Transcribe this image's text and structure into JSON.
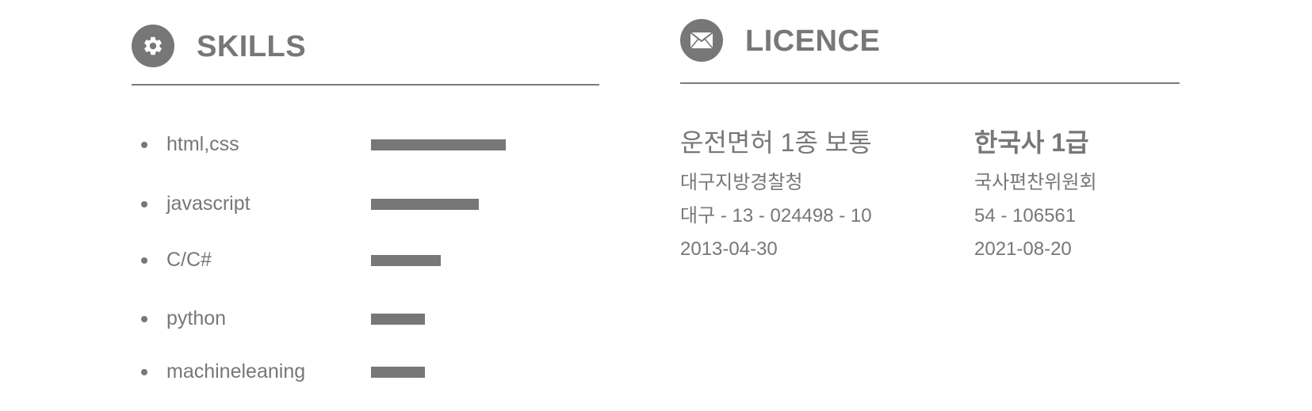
{
  "skills": {
    "title": "SKILLS",
    "icon": "gear-icon",
    "items": [
      {
        "name": "html,css",
        "level": 0.85
      },
      {
        "name": "javascript",
        "level": 0.68
      },
      {
        "name": "C/C#",
        "level": 0.44
      },
      {
        "name": "python",
        "level": 0.34
      },
      {
        "name": "machineleaning",
        "level": 0.34
      }
    ]
  },
  "licence": {
    "title": "LICENCE",
    "icon": "envelope-icon",
    "entries": [
      {
        "name": "운전면허 1종 보통",
        "issuer": "대구지방경찰청",
        "number": "대구 - 13 - 024498 - 10",
        "date": "2013-04-30"
      },
      {
        "name": "한국사 1급",
        "issuer": "국사편찬위원회",
        "number": "54 - 106561",
        "date": "2021-08-20"
      }
    ]
  },
  "colors": {
    "accent": "#777777",
    "background": "#ffffff"
  }
}
